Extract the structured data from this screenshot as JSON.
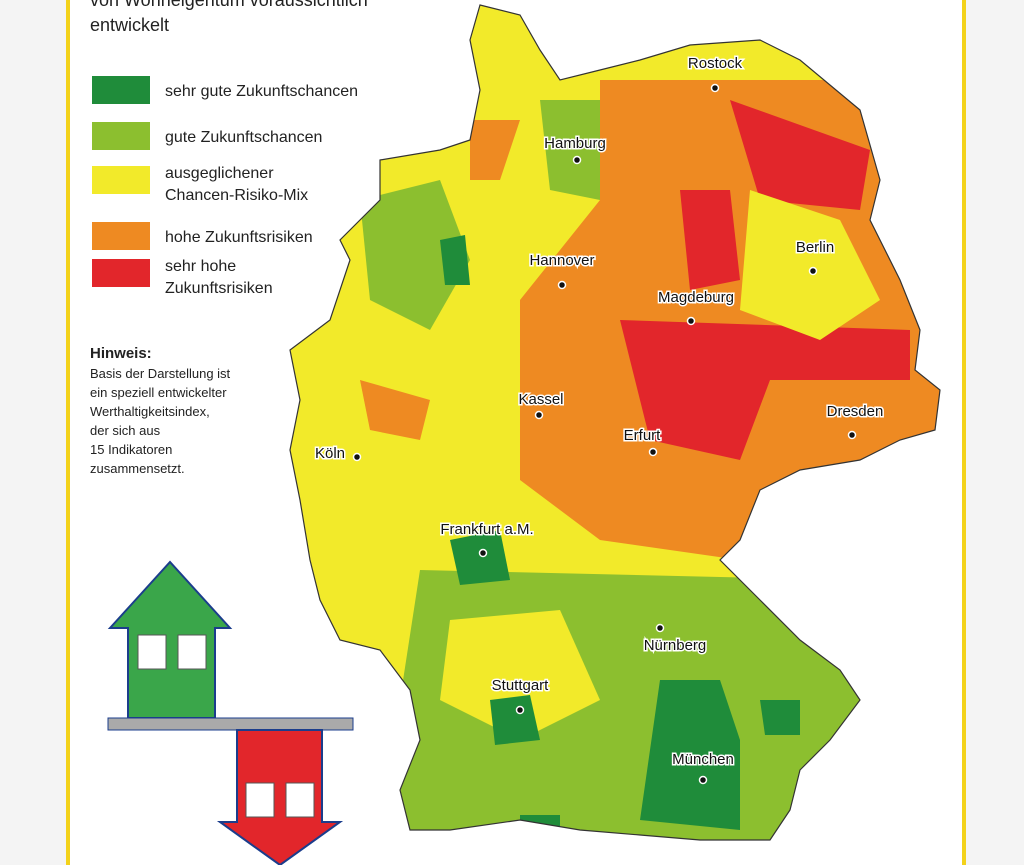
{
  "header": {
    "title_lines": [
      "von Wohneigentum voraussichtlich",
      "entwickelt"
    ]
  },
  "legend": {
    "items": [
      {
        "label_lines": [
          "sehr gute Zukunftschancen"
        ],
        "color": "#1f8c3a"
      },
      {
        "label_lines": [
          "gute Zukunftschancen"
        ],
        "color": "#8cbf2f"
      },
      {
        "label_lines": [
          "ausgeglichener",
          "Chancen-Risiko-Mix"
        ],
        "color": "#f2ea2a"
      },
      {
        "label_lines": [
          "hohe Zukunftsrisiken"
        ],
        "color": "#ee8a22"
      },
      {
        "label_lines": [
          "sehr hohe",
          "Zukunftsrisiken"
        ],
        "color": "#e2262b"
      }
    ]
  },
  "note": {
    "heading": "Hinweis:",
    "lines": [
      "Basis der Darstellung ist",
      "ein speziell entwickelter",
      "Werthaltigkeitsindex,",
      "der sich aus",
      "15 Indikatoren",
      "zusammensetzt."
    ]
  },
  "cities": [
    "Rostock",
    "Hamburg",
    "Hannover",
    "Berlin",
    "Magdeburg",
    "Kassel",
    "Dresden",
    "Erfurt",
    "Köln",
    "Frankfurt a.M.",
    "Nürnberg",
    "Stuttgart",
    "München"
  ]
}
